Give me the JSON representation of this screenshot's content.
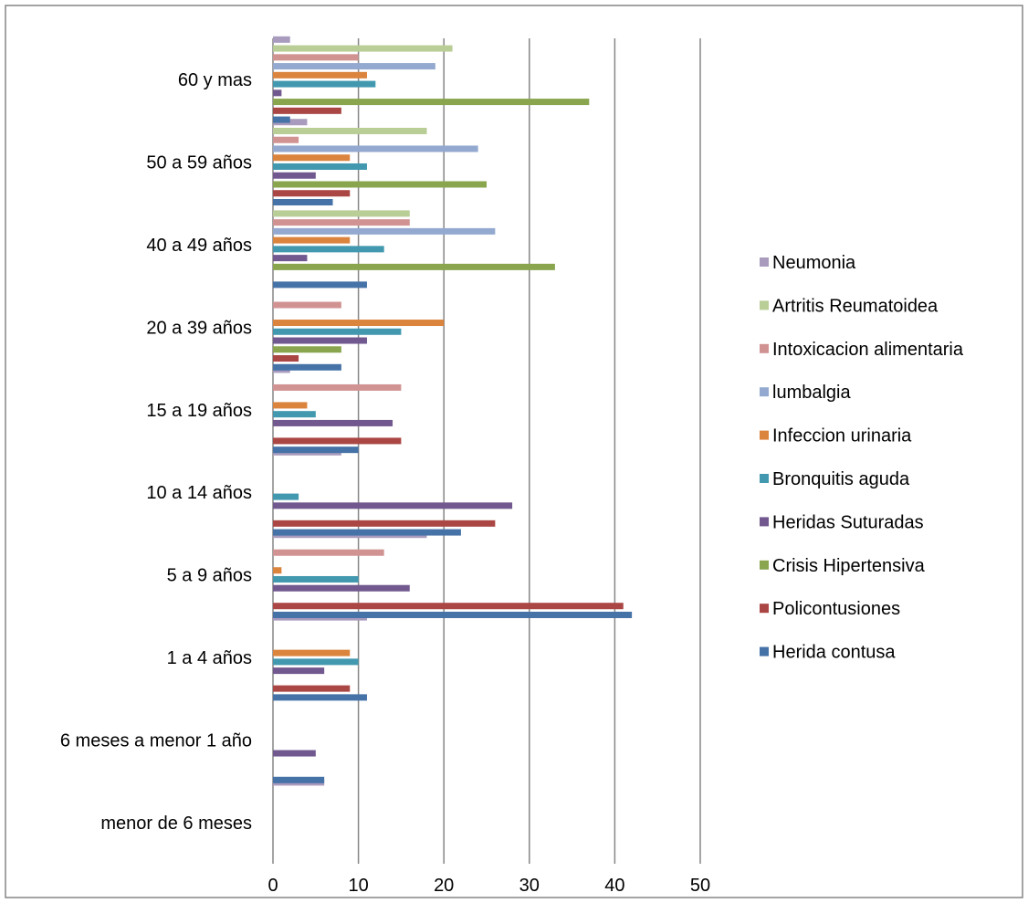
{
  "chart_data": {
    "type": "bar",
    "orientation": "horizontal",
    "title": "",
    "xlabel": "",
    "ylabel": "",
    "xlim": [
      0,
      50
    ],
    "x_ticks": [
      0,
      10,
      20,
      30,
      40,
      50
    ],
    "grid": "vertical",
    "legend_position": "right",
    "categories": [
      "menor de 6 meses",
      "6 meses a menor 1 año",
      "1 a 4 años",
      "5 a 9 años",
      "10 a 14 años",
      "15 a 19 años",
      "20 a 39 años",
      "40 a 49 años",
      "50 a 59 años",
      "60 y mas"
    ],
    "series": [
      {
        "name": "Herida contusa",
        "color": "#4572A7",
        "values": [
          0,
          6,
          11,
          42,
          22,
          10,
          8,
          11,
          7,
          2
        ]
      },
      {
        "name": "Policontusiones",
        "color": "#AA4643",
        "values": [
          0,
          0,
          9,
          41,
          26,
          15,
          3,
          0,
          9,
          8
        ]
      },
      {
        "name": "Crisis Hipertensiva",
        "color": "#89A54E",
        "values": [
          0,
          0,
          0,
          0,
          0,
          0,
          8,
          33,
          25,
          37
        ]
      },
      {
        "name": "Heridas Suturadas",
        "color": "#71588F",
        "values": [
          0,
          5,
          6,
          16,
          28,
          14,
          11,
          4,
          5,
          1
        ]
      },
      {
        "name": "Bronquitis aguda",
        "color": "#4198AF",
        "values": [
          0,
          0,
          10,
          10,
          3,
          5,
          15,
          13,
          11,
          12
        ]
      },
      {
        "name": "Infeccion urinaria",
        "color": "#DB843D",
        "values": [
          0,
          0,
          9,
          1,
          0,
          4,
          20,
          9,
          9,
          11
        ]
      },
      {
        "name": "lumbalgia",
        "color": "#93A9CF",
        "values": [
          0,
          0,
          0,
          0,
          0,
          0,
          0,
          26,
          24,
          19
        ]
      },
      {
        "name": "Intoxicacion alimentaria",
        "color": "#D19392",
        "values": [
          0,
          0,
          0,
          13,
          0,
          15,
          8,
          16,
          3,
          10
        ]
      },
      {
        "name": "Artritis Reumatoidea",
        "color": "#B9CD96",
        "values": [
          0,
          0,
          0,
          0,
          0,
          0,
          0,
          16,
          18,
          21
        ]
      },
      {
        "name": "Neumonia",
        "color": "#A99BBD",
        "values": [
          6,
          0,
          11,
          18,
          8,
          2,
          0,
          0,
          4,
          2
        ]
      }
    ]
  }
}
